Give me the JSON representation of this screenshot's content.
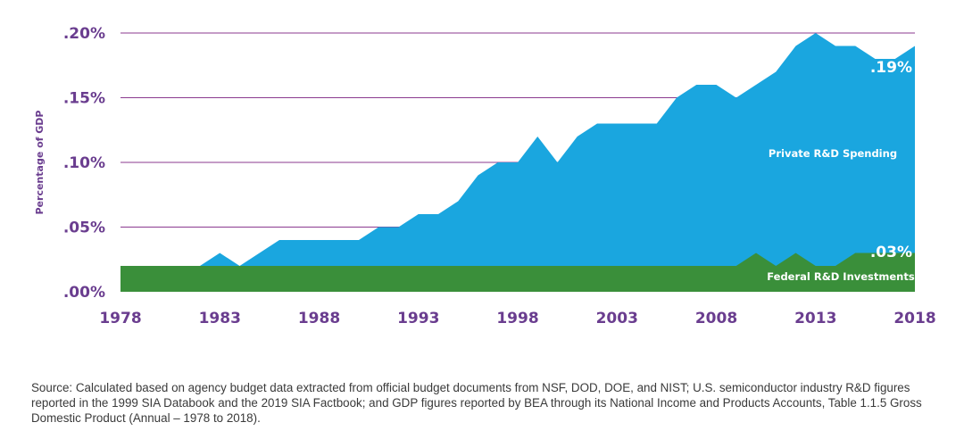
{
  "chart_data": {
    "type": "area",
    "stacked": false,
    "ylabel": "Percentage of GDP",
    "ylim": [
      0,
      0.2
    ],
    "yticks": [
      {
        "value": 0.0,
        "label": ".00%"
      },
      {
        "value": 0.05,
        "label": ".05%"
      },
      {
        "value": 0.1,
        "label": ".10%"
      },
      {
        "value": 0.15,
        "label": ".15%"
      },
      {
        "value": 0.2,
        "label": ".20%"
      }
    ],
    "xlim": [
      1978,
      2018
    ],
    "xticks": [
      1978,
      1983,
      1988,
      1993,
      1998,
      2003,
      2008,
      2013,
      2018
    ],
    "grid": "horizontal",
    "x": [
      1978,
      1979,
      1980,
      1981,
      1982,
      1983,
      1984,
      1985,
      1986,
      1987,
      1988,
      1989,
      1990,
      1991,
      1992,
      1993,
      1994,
      1995,
      1996,
      1997,
      1998,
      1999,
      2000,
      2001,
      2002,
      2003,
      2004,
      2005,
      2006,
      2007,
      2008,
      2009,
      2010,
      2011,
      2012,
      2013,
      2014,
      2015,
      2016,
      2017,
      2018
    ],
    "series": [
      {
        "name": "Private R&D Spending",
        "color": "#1aa6df",
        "values": [
          0.02,
          0.02,
          0.02,
          0.02,
          0.02,
          0.03,
          0.02,
          0.03,
          0.04,
          0.04,
          0.04,
          0.04,
          0.04,
          0.05,
          0.05,
          0.06,
          0.06,
          0.07,
          0.09,
          0.1,
          0.1,
          0.12,
          0.1,
          0.12,
          0.13,
          0.13,
          0.13,
          0.13,
          0.15,
          0.16,
          0.16,
          0.15,
          0.16,
          0.17,
          0.19,
          0.2,
          0.19,
          0.19,
          0.18,
          0.18,
          0.19
        ],
        "end_label": ".19%"
      },
      {
        "name": "Federal R&D Investments",
        "color": "#3a8f3a",
        "values": [
          0.02,
          0.02,
          0.02,
          0.02,
          0.02,
          0.02,
          0.02,
          0.02,
          0.02,
          0.02,
          0.02,
          0.02,
          0.02,
          0.02,
          0.02,
          0.02,
          0.02,
          0.02,
          0.02,
          0.02,
          0.02,
          0.02,
          0.02,
          0.02,
          0.02,
          0.02,
          0.02,
          0.02,
          0.02,
          0.02,
          0.02,
          0.02,
          0.03,
          0.02,
          0.03,
          0.02,
          0.02,
          0.03,
          0.03,
          0.03,
          0.03
        ],
        "end_label": ".03%"
      }
    ],
    "grid_color": "#8b3a8f",
    "tick_color": "#6a3d8f"
  },
  "source_note": "Source: Calculated based on agency budget data extracted from official budget documents from NSF, DOD, DOE, and NIST; U.S. semiconductor industry R&D figures reported in the 1999 SIA Databook and the 2019 SIA Factbook; and GDP figures reported by BEA through its National Income and Products Accounts, Table 1.1.5 Gross Domestic Product (Annual – 1978 to 2018)."
}
